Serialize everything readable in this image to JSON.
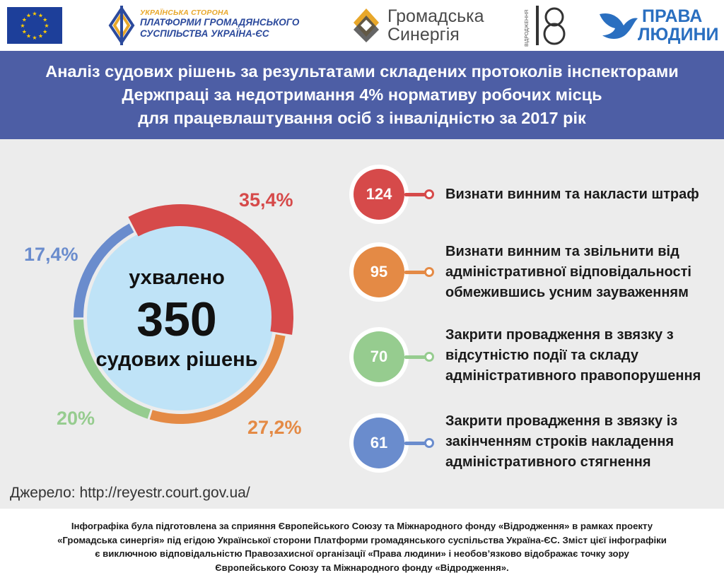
{
  "header": {
    "platform_logo": {
      "line1": "УКРАЇНСЬКА СТОРОНА",
      "line2": "ПЛАТФОРМИ ГРОМАДЯНСЬКОГО",
      "line3": "СУСПІЛЬСТВА УКРАЇНА-ЄС"
    },
    "synergy_logo": {
      "line1": "Громадська",
      "line2": "Синергія"
    },
    "vidrodzhennia_logo": {
      "small_text": "ВІДРОДЖЕННЯ"
    },
    "rights_logo": {
      "line1": "ПРАВА",
      "line2": "ЛЮДИНИ"
    }
  },
  "title": {
    "line1": "Аналіз судових рішень за результатами складених протоколів інспекторами",
    "line2": "Держпраці за недотримання 4% нормативу робочих місць",
    "line3": "для працевлаштування осіб з інвалідністю за 2017 рік"
  },
  "chart_data": {
    "type": "pie",
    "center": {
      "line1": "ухвалено",
      "number": "350",
      "line2": "судових рішень"
    },
    "total": 350,
    "slices": [
      {
        "label": "Визнати винним та накласти штраф",
        "value": 124,
        "percent_label": "35,4%",
        "color": "#d64a4a"
      },
      {
        "label": "Визнати винним та звільнити від адміністративної відповідальності обмежившись усним зауваженням",
        "value": 95,
        "percent_label": "27,2%",
        "color": "#e48a45"
      },
      {
        "label": "Закрити провадження в звязку з відсутністю події та складу адміністративного правопорушення",
        "value": 70,
        "percent_label": "20%",
        "color": "#96cc8f"
      },
      {
        "label": "Закрити провадження  в звязку із закінченням строків накладення адміністративного стягнення",
        "value": 61,
        "percent_label": "17,4%",
        "color": "#6a8ccd"
      }
    ]
  },
  "categories": [
    {
      "value": "124",
      "lines": [
        "Визнати винним та накласти штраф"
      ]
    },
    {
      "value": "95",
      "lines": [
        "Визнати винним та звільнити від",
        "адміністративної відповідальності",
        "обмежившись усним зауваженням"
      ]
    },
    {
      "value": "70",
      "lines": [
        "Закрити провадження в звязку з",
        "відсутністю події та складу",
        "адміністративного правопорушення"
      ]
    },
    {
      "value": "61",
      "lines": [
        "Закрити провадження  в звязку із",
        "закінченням строків накладення",
        "адміністративного стягнення"
      ]
    }
  ],
  "source": "Джерело: http://reyestr.court.gov.ua/",
  "footer": {
    "line1": "Інфографіка була підготовлена за сприяння Європейського Союзу та Міжнародного фонду «Відродження» в рамках проекту",
    "line2": "«Громадська синергія» під егідою Української сторони Платформи громадянського суспільства Україна-ЄС. Зміст цієї інфографіки",
    "line3": "є виключною відповідальністю Правозахисної організації «Права людини» і необов’язково відображає точку зору",
    "line4": "Європейського Союзу та Міжнародного фонду «Відродження»."
  },
  "colors": {
    "banner": "#4d5ea5",
    "panel": "#ececec",
    "center_fill": "#bfe3f7",
    "eu_blue": "#1d3f9a",
    "eu_star": "#ffcc00"
  }
}
